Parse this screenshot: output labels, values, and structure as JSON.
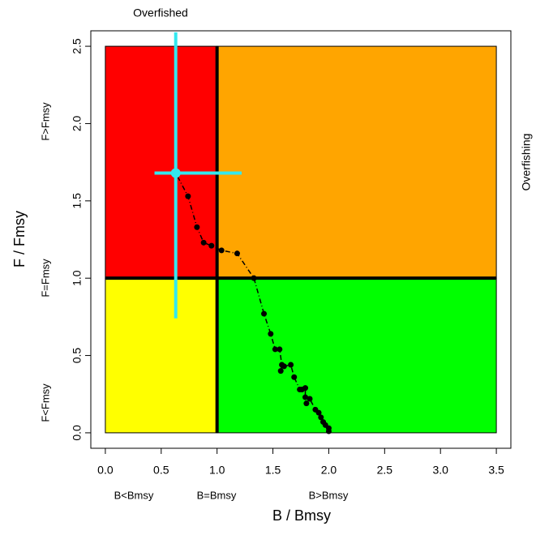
{
  "chart_data": {
    "type": "scatter",
    "title": "Overfished",
    "right_label": "Overfishing",
    "x_label": "B / Bmsy",
    "y_label": "F / Fmsy",
    "x_zone_labels": [
      "B<Bmsy",
      "B=Bmsy",
      "B>Bmsy"
    ],
    "y_zone_labels": [
      "F<Fmsy",
      "F=Fmsy",
      "F>Fmsy"
    ],
    "xlim": [
      -0.13,
      3.63
    ],
    "ylim": [
      -0.1,
      2.6
    ],
    "xticks": [
      {
        "value": 0,
        "label": "0.0"
      },
      0.5,
      {
        "value": 1,
        "label": "1.0"
      },
      1.5,
      {
        "value": 2,
        "label": "2.0"
      },
      2.5,
      {
        "value": 3,
        "label": "3.0"
      },
      3.5
    ],
    "yticks": [
      {
        "value": 0,
        "label": "0.0"
      },
      0.5,
      {
        "value": 1,
        "label": "1.0"
      },
      1.5,
      {
        "value": 2,
        "label": "2.0"
      },
      2.5
    ],
    "regions": [
      {
        "x": [
          0,
          1
        ],
        "y": [
          1,
          2.5
        ],
        "color": "#ff0000"
      },
      {
        "x": [
          1,
          3.5
        ],
        "y": [
          1,
          2.5
        ],
        "color": "#ffa500"
      },
      {
        "x": [
          0,
          1
        ],
        "y": [
          0,
          1
        ],
        "color": "#ffff00"
      },
      {
        "x": [
          1,
          3.5
        ],
        "y": [
          0,
          1
        ],
        "color": "#00ff00"
      }
    ],
    "reference_x": 1,
    "reference_y": 1,
    "color": "#000000",
    "x": [
      2.0,
      2.0,
      1.97,
      1.95,
      1.93,
      1.91,
      1.88,
      1.83,
      1.8,
      1.79,
      1.79,
      1.76,
      1.74,
      1.69,
      1.66,
      1.6,
      1.57,
      1.58,
      1.56,
      1.52,
      1.48,
      1.42,
      1.33,
      1.18,
      1.04,
      0.95,
      0.88,
      0.82,
      0.74,
      0.63
    ],
    "y": [
      0.01,
      0.03,
      0.05,
      0.07,
      0.1,
      0.13,
      0.15,
      0.22,
      0.19,
      0.23,
      0.29,
      0.28,
      0.28,
      0.36,
      0.44,
      0.43,
      0.4,
      0.44,
      0.54,
      0.54,
      0.64,
      0.77,
      1.0,
      1.16,
      1.18,
      1.21,
      1.23,
      1.33,
      1.53,
      1.68
    ],
    "current": {
      "x": 0.63,
      "y": 1.68,
      "x_range": [
        0.44,
        1.22
      ],
      "y_range": [
        0.74,
        2.59
      ],
      "color": "#33e8f0"
    }
  }
}
